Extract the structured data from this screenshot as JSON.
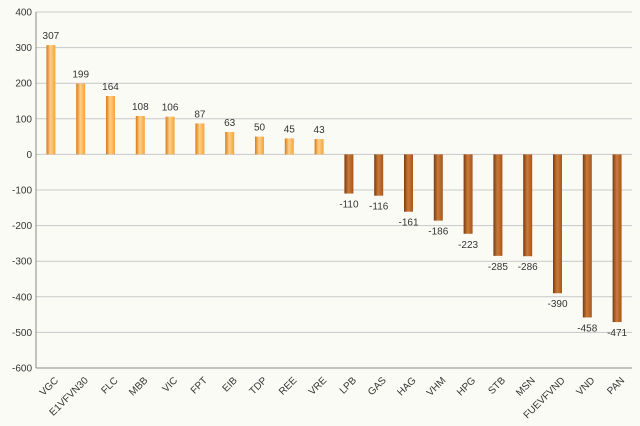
{
  "chart_data": {
    "type": "bar",
    "title": "",
    "xlabel": "",
    "ylabel": "",
    "ylim": [
      -600,
      400
    ],
    "yticks": [
      400,
      300,
      200,
      100,
      0,
      -100,
      -200,
      -300,
      -400,
      -500,
      -600
    ],
    "grid": true,
    "categories": [
      "VGC",
      "E1VFVN30",
      "FLC",
      "MBB",
      "VIC",
      "FPT",
      "EIB",
      "TDP",
      "REE",
      "VRE",
      "LPB",
      "GAS",
      "HAG",
      "VHM",
      "HPG",
      "STB",
      "MSN",
      "FUEVFVND",
      "VND",
      "PAN"
    ],
    "values": [
      307,
      199,
      164,
      108,
      106,
      87,
      63,
      50,
      45,
      43,
      -110,
      -116,
      -161,
      -186,
      -223,
      -285,
      -286,
      -390,
      -458,
      -471
    ],
    "colors": {
      "positive": "#f5a33a",
      "positive_light": "#fdd08a",
      "positive_dark": "#d97a14",
      "negative": "#a8561c",
      "negative_light": "#c97a3a",
      "negative_dark": "#7a3a0e"
    }
  }
}
